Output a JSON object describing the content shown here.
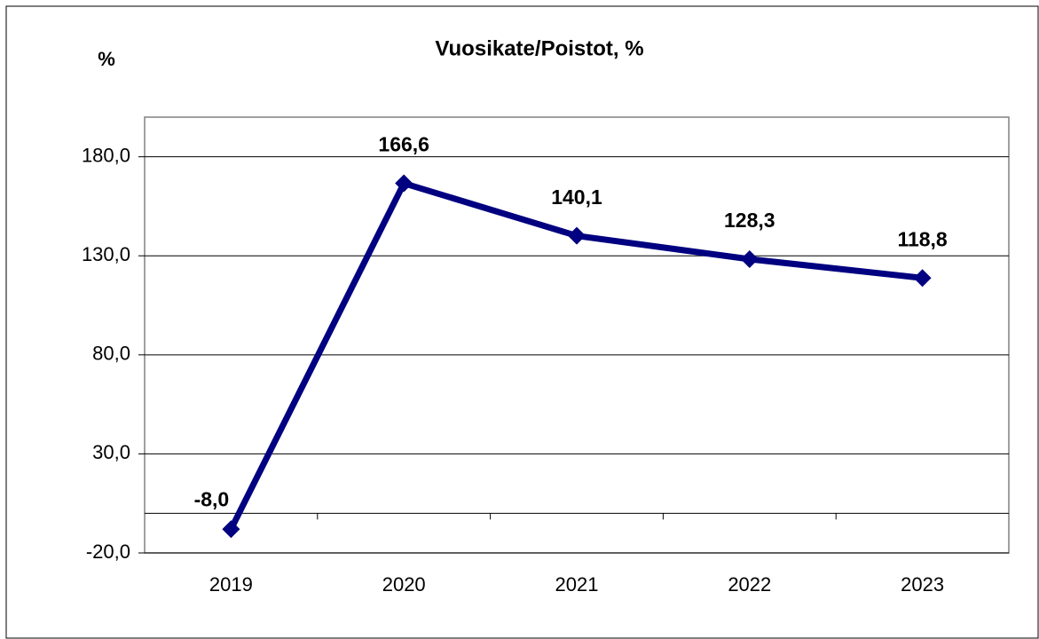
{
  "chart_data": {
    "type": "line",
    "title": "Vuosikate/Poistot, %",
    "y_label": "%",
    "categories": [
      "2019",
      "2020",
      "2021",
      "2022",
      "2023"
    ],
    "values": [
      -8.0,
      166.6,
      140.1,
      128.3,
      118.8
    ],
    "value_labels": [
      "-8,0",
      "166,6",
      "140,1",
      "128,3",
      "118,8"
    ],
    "color": "#000080",
    "ylim": [
      -20,
      200
    ],
    "yticks": [
      {
        "value": -20,
        "label": "-20,0"
      },
      {
        "value": 30,
        "label": "30,0"
      },
      {
        "value": 80,
        "label": "80,0"
      },
      {
        "value": 130,
        "label": "130,0"
      },
      {
        "value": 180,
        "label": "180,0"
      }
    ],
    "grid": true
  }
}
